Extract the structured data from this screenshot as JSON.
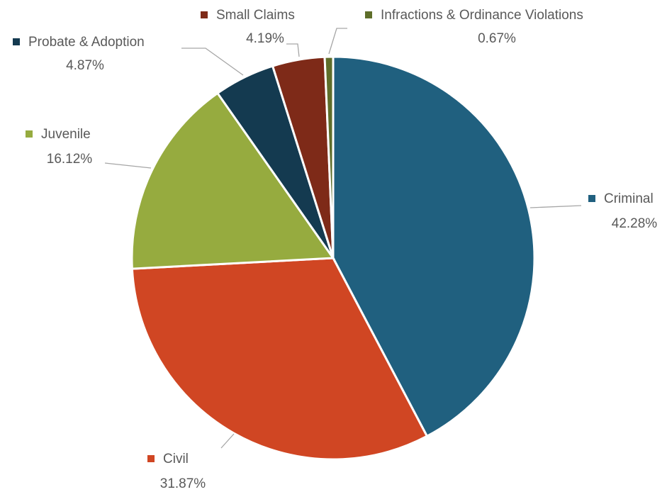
{
  "chart_data": {
    "type": "pie",
    "categories": [
      "Criminal",
      "Civil",
      "Juvenile",
      "Probate & Adoption",
      "Small Claims",
      "Infractions & Ordinance Violations"
    ],
    "values": [
      42.28,
      31.87,
      16.12,
      4.87,
      4.19,
      0.67
    ],
    "value_labels": [
      "42.28%",
      "31.87%",
      "16.12%",
      "4.87%",
      "4.19%",
      "0.67%"
    ],
    "colors": [
      "#20607f",
      "#d04623",
      "#96ab3f",
      "#143a50",
      "#7e2a18",
      "#5e6e2a"
    ]
  }
}
